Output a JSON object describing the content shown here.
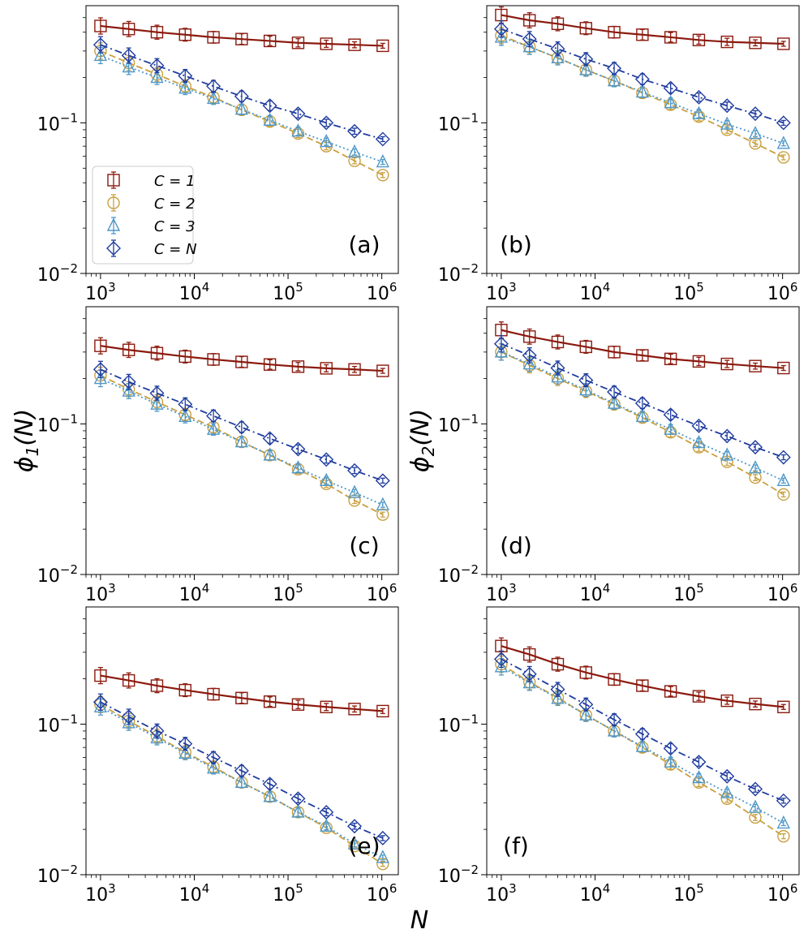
{
  "chart_data": {
    "type": "line",
    "xlabel": "N",
    "ylabel_left": "ϕ1(N)",
    "ylabel_right": "ϕ2(N)",
    "xscale": "log",
    "yscale": "log",
    "xlim": [
      700,
      1500000
    ],
    "ylim": [
      0.01,
      0.6
    ],
    "x_ticks": [
      {
        "base": "10",
        "exp": "3"
      },
      {
        "base": "10",
        "exp": "4"
      },
      {
        "base": "10",
        "exp": "5"
      },
      {
        "base": "10",
        "exp": "6"
      }
    ],
    "y_ticks": [
      {
        "base": "10",
        "exp": "−2"
      },
      {
        "base": "10",
        "exp": "−1"
      }
    ],
    "x": [
      1000,
      2000,
      4000,
      8000,
      16000,
      32000,
      64000,
      128000,
      256000,
      512000,
      1024000
    ],
    "legend": {
      "location": "panel (a), middle-left",
      "entries": [
        "C = 1",
        "C = 2",
        "C = 3",
        "C = N"
      ]
    },
    "series_styles": [
      {
        "name": "C = 1",
        "color": "#8b1a0e",
        "marker": "square",
        "line": "solid"
      },
      {
        "name": "C = 2",
        "color": "#c9a040",
        "marker": "circle",
        "line": "dashed"
      },
      {
        "name": "C = 3",
        "color": "#4f98c9",
        "marker": "triangle",
        "line": "dotted"
      },
      {
        "name": "C = N",
        "color": "#1f3c9f",
        "marker": "diamond",
        "line": "dashdot"
      }
    ],
    "panels": [
      {
        "label": "(a)",
        "series": [
          {
            "name": "C = 1",
            "values": [
              0.44,
              0.42,
              0.4,
              0.385,
              0.37,
              0.36,
              0.35,
              0.34,
              0.335,
              0.33,
              0.325
            ]
          },
          {
            "name": "C = 2",
            "values": [
              0.3,
              0.25,
              0.21,
              0.175,
              0.148,
              0.122,
              0.102,
              0.085,
              0.07,
              0.056,
              0.045
            ]
          },
          {
            "name": "C = 3",
            "values": [
              0.28,
              0.235,
              0.2,
              0.17,
              0.145,
              0.123,
              0.104,
              0.088,
              0.075,
              0.064,
              0.055
            ]
          },
          {
            "name": "C = N",
            "values": [
              0.33,
              0.28,
              0.24,
              0.205,
              0.175,
              0.15,
              0.13,
              0.115,
              0.1,
              0.088,
              0.078
            ]
          }
        ]
      },
      {
        "label": "(b)",
        "series": [
          {
            "name": "C = 1",
            "values": [
              0.52,
              0.48,
              0.455,
              0.425,
              0.4,
              0.385,
              0.37,
              0.355,
              0.345,
              0.34,
              0.335
            ]
          },
          {
            "name": "C = 2",
            "values": [
              0.38,
              0.32,
              0.27,
              0.225,
              0.19,
              0.158,
              0.132,
              0.11,
              0.09,
              0.073,
              0.059
            ]
          },
          {
            "name": "C = 3",
            "values": [
              0.37,
              0.32,
              0.27,
              0.225,
              0.19,
              0.16,
              0.136,
              0.115,
              0.098,
              0.085,
              0.073
            ]
          },
          {
            "name": "C = N",
            "values": [
              0.42,
              0.36,
              0.31,
              0.265,
              0.23,
              0.195,
              0.17,
              0.148,
              0.13,
              0.115,
              0.1
            ]
          }
        ]
      },
      {
        "label": "(c)",
        "series": [
          {
            "name": "C = 1",
            "values": [
              0.33,
              0.31,
              0.295,
              0.28,
              0.268,
              0.258,
              0.248,
              0.24,
              0.234,
              0.23,
              0.225
            ]
          },
          {
            "name": "C = 2",
            "values": [
              0.21,
              0.17,
              0.14,
              0.115,
              0.095,
              0.076,
              0.062,
              0.05,
              0.04,
              0.031,
              0.025
            ]
          },
          {
            "name": "C = 3",
            "values": [
              0.2,
              0.165,
              0.135,
              0.112,
              0.092,
              0.076,
              0.062,
              0.051,
              0.042,
              0.035,
              0.029
            ]
          },
          {
            "name": "C = N",
            "values": [
              0.23,
              0.19,
              0.16,
              0.135,
              0.113,
              0.095,
              0.08,
              0.068,
              0.058,
              0.049,
              0.042
            ]
          }
        ]
      },
      {
        "label": "(d)",
        "series": [
          {
            "name": "C = 1",
            "values": [
              0.42,
              0.38,
              0.35,
              0.325,
              0.3,
              0.285,
              0.27,
              0.26,
              0.25,
              0.242,
              0.235
            ]
          },
          {
            "name": "C = 2",
            "values": [
              0.3,
              0.245,
              0.2,
              0.165,
              0.135,
              0.11,
              0.088,
              0.07,
              0.056,
              0.044,
              0.034
            ]
          },
          {
            "name": "C = 3",
            "values": [
              0.3,
              0.25,
              0.205,
              0.168,
              0.137,
              0.112,
              0.092,
              0.075,
              0.062,
              0.051,
              0.042
            ]
          },
          {
            "name": "C = N",
            "values": [
              0.34,
              0.285,
              0.235,
              0.195,
              0.163,
              0.137,
              0.115,
              0.097,
              0.083,
              0.07,
              0.06
            ]
          }
        ]
      },
      {
        "label": "(e)",
        "series": [
          {
            "name": "C = 1",
            "values": [
              0.21,
              0.195,
              0.18,
              0.168,
              0.158,
              0.149,
              0.141,
              0.135,
              0.13,
              0.126,
              0.122
            ]
          },
          {
            "name": "C = 2",
            "values": [
              0.135,
              0.105,
              0.083,
              0.065,
              0.052,
              0.041,
              0.033,
              0.026,
              0.0205,
              0.0155,
              0.0118
            ]
          },
          {
            "name": "C = 3",
            "values": [
              0.13,
              0.102,
              0.081,
              0.064,
              0.051,
              0.041,
              0.033,
              0.026,
              0.021,
              0.016,
              0.013
            ]
          },
          {
            "name": "C = N",
            "values": [
              0.14,
              0.112,
              0.09,
              0.074,
              0.06,
              0.049,
              0.04,
              0.032,
              0.026,
              0.021,
              0.0175
            ]
          }
        ]
      },
      {
        "label": "(f)",
        "series": [
          {
            "name": "C = 1",
            "values": [
              0.33,
              0.29,
              0.25,
              0.22,
              0.198,
              0.18,
              0.165,
              0.153,
              0.143,
              0.136,
              0.13
            ]
          },
          {
            "name": "C = 2",
            "values": [
              0.25,
              0.19,
              0.15,
              0.115,
              0.09,
              0.07,
              0.054,
              0.041,
              0.032,
              0.024,
              0.018
            ]
          },
          {
            "name": "C = 3",
            "values": [
              0.24,
              0.188,
              0.148,
              0.115,
              0.09,
              0.071,
              0.056,
              0.044,
              0.035,
              0.028,
              0.022
            ]
          },
          {
            "name": "C = N",
            "values": [
              0.27,
              0.215,
              0.17,
              0.135,
              0.107,
              0.086,
              0.069,
              0.056,
              0.045,
              0.037,
              0.031
            ]
          }
        ]
      }
    ]
  }
}
